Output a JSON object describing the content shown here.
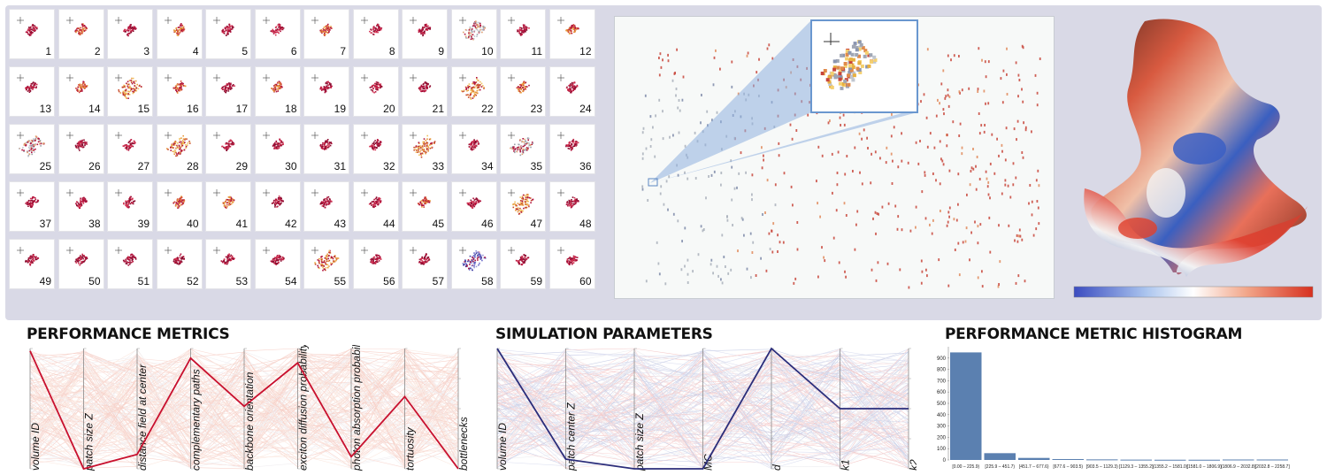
{
  "thumbnails": [
    {
      "n": "1",
      "color": "crimson"
    },
    {
      "n": "2",
      "color": "mixed"
    },
    {
      "n": "3",
      "color": "crimson"
    },
    {
      "n": "4",
      "color": "mixed"
    },
    {
      "n": "5",
      "color": "crimson"
    },
    {
      "n": "6",
      "color": "crimson"
    },
    {
      "n": "7",
      "color": "mixed"
    },
    {
      "n": "8",
      "color": "crimson"
    },
    {
      "n": "9",
      "color": "crimson"
    },
    {
      "n": "10",
      "color": "gray"
    },
    {
      "n": "11",
      "color": "crimson"
    },
    {
      "n": "12",
      "color": "mixed"
    },
    {
      "n": "13",
      "color": "crimson"
    },
    {
      "n": "14",
      "color": "mixed"
    },
    {
      "n": "15",
      "color": "orange"
    },
    {
      "n": "16",
      "color": "mixed"
    },
    {
      "n": "17",
      "color": "crimson"
    },
    {
      "n": "18",
      "color": "mixed"
    },
    {
      "n": "19",
      "color": "crimson"
    },
    {
      "n": "20",
      "color": "crimson"
    },
    {
      "n": "21",
      "color": "crimson"
    },
    {
      "n": "22",
      "color": "orange"
    },
    {
      "n": "23",
      "color": "mixed"
    },
    {
      "n": "24",
      "color": "crimson"
    },
    {
      "n": "25",
      "color": "gray"
    },
    {
      "n": "26",
      "color": "crimson"
    },
    {
      "n": "27",
      "color": "crimson"
    },
    {
      "n": "28",
      "color": "orange"
    },
    {
      "n": "29",
      "color": "crimson"
    },
    {
      "n": "30",
      "color": "crimson"
    },
    {
      "n": "31",
      "color": "crimson"
    },
    {
      "n": "32",
      "color": "crimson"
    },
    {
      "n": "33",
      "color": "orange"
    },
    {
      "n": "34",
      "color": "crimson"
    },
    {
      "n": "35",
      "color": "gray"
    },
    {
      "n": "36",
      "color": "crimson"
    },
    {
      "n": "37",
      "color": "crimson"
    },
    {
      "n": "38",
      "color": "crimson"
    },
    {
      "n": "39",
      "color": "crimson"
    },
    {
      "n": "40",
      "color": "mixed"
    },
    {
      "n": "41",
      "color": "mixed"
    },
    {
      "n": "42",
      "color": "crimson"
    },
    {
      "n": "43",
      "color": "crimson"
    },
    {
      "n": "44",
      "color": "crimson"
    },
    {
      "n": "45",
      "color": "mixed"
    },
    {
      "n": "46",
      "color": "crimson"
    },
    {
      "n": "47",
      "color": "orange"
    },
    {
      "n": "48",
      "color": "crimson"
    },
    {
      "n": "49",
      "color": "crimson"
    },
    {
      "n": "50",
      "color": "crimson"
    },
    {
      "n": "51",
      "color": "crimson"
    },
    {
      "n": "52",
      "color": "crimson"
    },
    {
      "n": "53",
      "color": "crimson"
    },
    {
      "n": "54",
      "color": "crimson"
    },
    {
      "n": "55",
      "color": "orange"
    },
    {
      "n": "56",
      "color": "crimson"
    },
    {
      "n": "57",
      "color": "crimson"
    },
    {
      "n": "58",
      "color": "blue"
    },
    {
      "n": "59",
      "color": "crimson"
    },
    {
      "n": "60",
      "color": "crimson"
    }
  ],
  "colors": {
    "crimson": "#b0123c",
    "orange": "#e89a3c",
    "gray": "#9aa0aa",
    "blue": "#3a3aa0",
    "highlight_line": "#c8102e",
    "sim_line": "#2b2d7a",
    "hist_bar": "#5b80b0",
    "callout": "#8fb1de"
  },
  "performance_metrics": {
    "title": "PERFORMANCE METRICS",
    "axes": [
      "volume ID",
      "patch size Z",
      "distance field at center",
      "complementary paths",
      "backbone orientation",
      "exciton diffusion probability",
      "photon absorption probability",
      "tortuosity",
      "bottlenecks"
    ],
    "highlight": [
      0.98,
      0.0,
      0.12,
      0.92,
      0.52,
      0.88,
      0.1,
      0.6,
      0.0
    ]
  },
  "simulation_parameters": {
    "title": "SIMULATION PARAMETERS",
    "axes": [
      "volume ID",
      "patch center Z",
      "patch size Z",
      "MC",
      "d",
      "k1",
      "k2"
    ],
    "highlight": [
      1.0,
      0.08,
      0.0,
      0.0,
      1.0,
      0.5,
      0.5
    ]
  },
  "histogram": {
    "title": "PERFORMANCE METRIC HISTOGRAM",
    "y_ticks": [
      "0",
      "100",
      "200",
      "300",
      "400",
      "500",
      "600",
      "700",
      "800",
      "900"
    ],
    "bins": [
      {
        "label": "[0.00 – 225.9)",
        "count": 950
      },
      {
        "label": "[225.9 – 451.7)",
        "count": 60
      },
      {
        "label": "[451.7 – 677.6)",
        "count": 18
      },
      {
        "label": "[677.6 – 903.5)",
        "count": 8
      },
      {
        "label": "[903.5 – 1129.3)",
        "count": 5
      },
      {
        "label": "[1129.3 – 1355.2)",
        "count": 3
      },
      {
        "label": "[1355.2 – 1581.0)",
        "count": 2
      },
      {
        "label": "[1581.0 – 1806.9)",
        "count": 2
      },
      {
        "label": "[1806.9 – 2032.8)",
        "count": 4
      },
      {
        "label": "[2032.8 – 2258.7]",
        "count": 4
      }
    ]
  },
  "colorbar": {
    "stops": [
      "#3b4cc0",
      "#aac4ee",
      "#ffffff",
      "#f2a78a",
      "#d7301f"
    ]
  }
}
